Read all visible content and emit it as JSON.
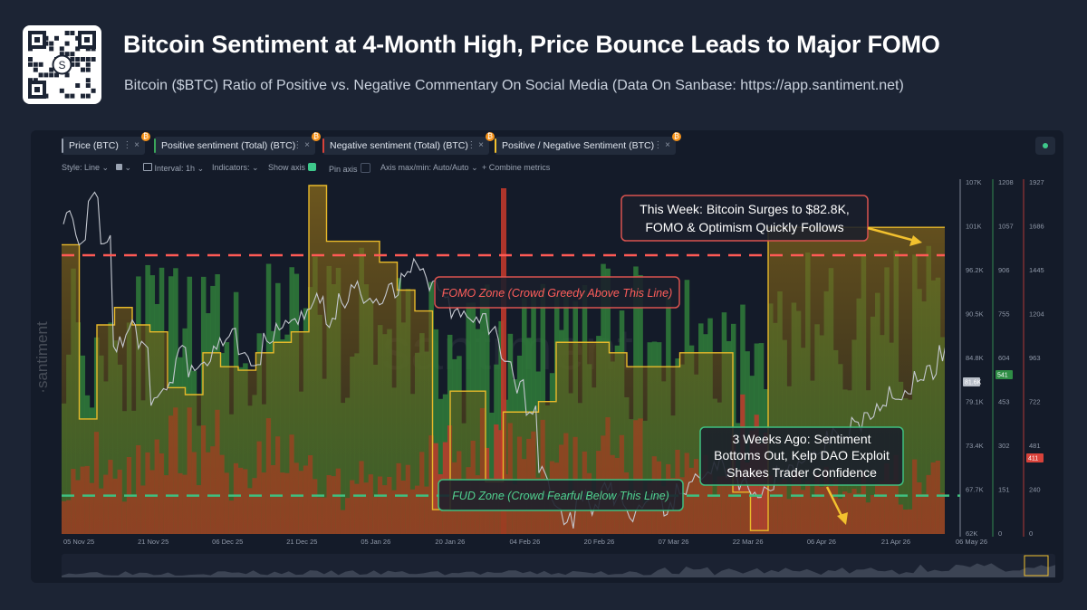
{
  "header": {
    "title": "Bitcoin Sentiment at 4-Month High, Price Bounce Leads to Major FOMO",
    "subtitle": "Bitcoin ($BTC) Ratio of Positive vs. Negative Commentary On Social Media (Data On Sanbase: https://app.santiment.net)"
  },
  "brand": {
    "watermark": "santiment",
    "side_mark": "·santiment",
    "qr_label": "S"
  },
  "tabs": [
    {
      "label": "Price (BTC)",
      "color": "#9aa3b2"
    },
    {
      "label": "Positive sentiment (Total) (BTC)",
      "color": "#3aa55a"
    },
    {
      "label": "Negative sentiment (Total) (BTC)",
      "color": "#d8423a"
    },
    {
      "label": "Positive / Negative Sentiment (BTC)",
      "color": "#f2c12e"
    }
  ],
  "tab_badge": "₿",
  "tab_controls": "⋮  ×",
  "options": {
    "style": "Style: Line",
    "interval": "Interval: 1h",
    "indicators": "Indicators:",
    "show_axis": "Show axis",
    "pin_axis": "Pin axis",
    "axis_minmax": "Axis max/min: Auto/Auto",
    "combine": "+  Combine metrics",
    "caret": "⌄"
  },
  "chart_data": {
    "type": "area",
    "x_labels": [
      "05 Nov 25",
      "21 Nov 25",
      "06 Dec 25",
      "21 Dec 25",
      "05 Jan 26",
      "20 Jan 26",
      "04 Feb 26",
      "20 Feb 26",
      "07 Mar 26",
      "22 Mar 26",
      "06 Apr 26",
      "21 Apr 26",
      "06 May 26"
    ],
    "axes": [
      {
        "name": "Price (BTC)",
        "ticks": [
          "107K",
          "101K",
          "96.2K",
          "90.5K",
          "84.8K",
          "79.1K",
          "73.4K",
          "67.7K",
          "62K"
        ],
        "current": "81.6K"
      },
      {
        "name": "Positive sentiment (Total) (BTC)",
        "ticks": [
          "1208",
          "1057",
          "906",
          "755",
          "604",
          "453",
          "302",
          "151",
          "0"
        ],
        "current": "541"
      },
      {
        "name": "Negative sentiment (Total) (BTC)",
        "ticks": [
          "1927",
          "1686",
          "1445",
          "1204",
          "963",
          "722",
          "481",
          "240",
          "0"
        ],
        "current": "411"
      }
    ],
    "ratio_steps": [
      0.83,
      0.33,
      0.6,
      0.65,
      0.6,
      0.58,
      0.42,
      0.4,
      0.52,
      0.48,
      0.47,
      0.52,
      0.55,
      0.58,
      1.0,
      0.84,
      0.84,
      0.84,
      0.78,
      0.7,
      0.64,
      0.07,
      0.41,
      0.41,
      0.15,
      0.35,
      0.35,
      0.38,
      0.55,
      0.55,
      0.55,
      0.52,
      0.48,
      0.48,
      0.48,
      0.52,
      0.52,
      0.52,
      0.12,
      0.01,
      0.88,
      0.88,
      0.88,
      0.88,
      0.88,
      0.88,
      0.88,
      0.88,
      0.88,
      0.88
    ],
    "price_path": [
      0.95,
      0.88,
      1.0,
      0.88,
      0.55,
      0.6,
      0.55,
      0.38,
      0.42,
      0.52,
      0.46,
      0.5,
      0.55,
      0.58,
      0.52,
      0.48,
      0.56,
      0.6,
      0.62,
      0.64,
      0.7,
      0.62,
      0.68,
      0.72,
      0.7,
      0.68,
      0.72,
      0.76,
      0.8,
      0.74,
      0.72,
      0.65,
      0.63,
      0.62,
      0.58,
      0.48,
      0.42,
      0.34,
      0.14,
      0.06,
      0.0,
      0.08,
      0.04,
      0.1,
      0.06,
      0.02,
      0.06,
      0.08,
      0.04,
      0.1,
      0.12,
      0.14,
      0.18,
      0.15,
      0.12,
      0.08,
      0.1,
      0.14,
      0.16,
      0.2,
      0.22,
      0.26,
      0.28,
      0.3,
      0.34,
      0.36,
      0.4,
      0.38,
      0.44,
      0.46,
      0.52
    ],
    "fomo_line": 0.8,
    "fud_line": 0.11,
    "annotations": {
      "fomo": "FOMO Zone (Crowd Greedy Above This Line)",
      "fud": "FUD Zone (Crowd Fearful Below This Line)",
      "this_week_1": "This Week: Bitcoin Surges to $82.8K,",
      "this_week_2": "FOMO & Optimism Quickly Follows",
      "weeks_ago_1": "3 Weeks Ago: Sentiment",
      "weeks_ago_2": "Bottoms Out, Kelp DAO Exploit",
      "weeks_ago_3": "Shakes Trader Confidence"
    },
    "colors": {
      "price": "#c4c8d0",
      "positive": "#2f7d3a",
      "negative": "#c0392b",
      "ratio": "#e8b92a",
      "fomo": "#ff5a55",
      "fud": "#3fbf7f"
    }
  }
}
